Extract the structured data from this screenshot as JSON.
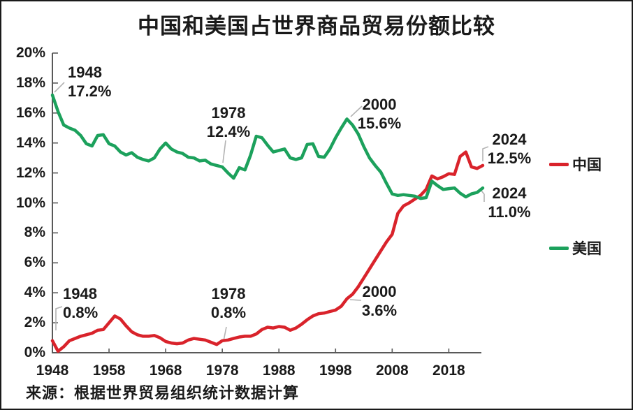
{
  "title": "中国和美国占世界商品贸易份额比较",
  "source": "来源：根据世界贸易组织统计数据计算",
  "legend": [
    {
      "label": "中国",
      "color": "#d9232b"
    },
    {
      "label": "美国",
      "color": "#1ca15c"
    }
  ],
  "chart_data": {
    "type": "line",
    "title": "中国和美国占世界商品贸易份额比较",
    "x_range": [
      1948,
      2024
    ],
    "x_step": 1,
    "ylim": [
      0,
      20
    ],
    "grid": false,
    "axis_color": "#595959",
    "leader_color": "#b3b3b3",
    "y_tick_labels": [
      "0%",
      "2%",
      "4%",
      "6%",
      "8%",
      "10%",
      "12%",
      "14%",
      "16%",
      "18%",
      "20%"
    ],
    "x_tick_labels": [
      "1948",
      "1958",
      "1968",
      "1978",
      "1988",
      "1998",
      "2008",
      "2018"
    ],
    "x_tick_label_years": [
      1948,
      1958,
      1968,
      1978,
      1988,
      1998,
      2008,
      2018
    ],
    "x_tick_marks": [
      1958,
      1968,
      1978,
      1988,
      1998,
      2008,
      2018
    ],
    "series": [
      {
        "name": "中国",
        "color": "#d9232b",
        "values": [
          0.8,
          0.1,
          0.4,
          0.8,
          0.95,
          1.1,
          1.2,
          1.3,
          1.5,
          1.55,
          2.0,
          2.45,
          2.25,
          1.8,
          1.4,
          1.2,
          1.1,
          1.1,
          1.15,
          1.0,
          0.75,
          0.65,
          0.6,
          0.65,
          0.85,
          0.95,
          0.9,
          0.85,
          0.7,
          0.55,
          0.8,
          0.85,
          0.95,
          1.05,
          1.1,
          1.1,
          1.25,
          1.55,
          1.7,
          1.65,
          1.75,
          1.7,
          1.5,
          1.65,
          1.9,
          2.2,
          2.45,
          2.6,
          2.65,
          2.75,
          2.85,
          3.1,
          3.6,
          3.9,
          4.4,
          5.0,
          5.6,
          6.2,
          6.8,
          7.4,
          7.9,
          9.3,
          9.8,
          10.0,
          10.25,
          10.5,
          10.9,
          11.8,
          11.6,
          11.75,
          11.95,
          11.9,
          13.1,
          13.4,
          12.4,
          12.3,
          12.5
        ]
      },
      {
        "name": "美国",
        "color": "#1ca15c",
        "values": [
          17.2,
          16.1,
          15.2,
          15.0,
          14.85,
          14.5,
          13.95,
          13.8,
          14.5,
          14.55,
          13.95,
          13.8,
          13.4,
          13.2,
          13.35,
          13.05,
          12.9,
          12.8,
          13.0,
          13.6,
          14.0,
          13.6,
          13.4,
          13.3,
          13.05,
          13.0,
          12.8,
          12.85,
          12.6,
          12.5,
          12.4,
          12.0,
          11.65,
          12.35,
          12.2,
          13.2,
          14.45,
          14.35,
          13.85,
          13.4,
          13.5,
          13.6,
          13.0,
          12.9,
          13.0,
          13.9,
          13.95,
          13.1,
          13.05,
          13.6,
          14.35,
          15.0,
          15.6,
          15.2,
          14.6,
          13.75,
          13.0,
          12.5,
          12.05,
          11.3,
          10.6,
          10.5,
          10.55,
          10.5,
          10.45,
          10.3,
          10.35,
          11.45,
          11.15,
          10.9,
          10.95,
          11.0,
          10.65,
          10.4,
          10.6,
          10.7,
          11.0
        ]
      }
    ],
    "annotations": [
      {
        "id": "us-1948",
        "series": "美国",
        "year": 1948,
        "value": 17.2,
        "line1": "1948",
        "line2": "17.2%"
      },
      {
        "id": "cn-1948",
        "series": "中国",
        "year": 1948,
        "value": 0.8,
        "line1": "1948",
        "line2": "0.8%"
      },
      {
        "id": "us-1978",
        "series": "美国",
        "year": 1978,
        "value": 12.4,
        "line1": "1978",
        "line2": "12.4%"
      },
      {
        "id": "cn-1978",
        "series": "中国",
        "year": 1978,
        "value": 0.8,
        "line1": "1978",
        "line2": "0.8%"
      },
      {
        "id": "us-2000",
        "series": "美国",
        "year": 2000,
        "value": 15.6,
        "line1": "2000",
        "line2": "15.6%"
      },
      {
        "id": "cn-2000",
        "series": "中国",
        "year": 2000,
        "value": 3.6,
        "line1": "2000",
        "line2": "3.6%"
      },
      {
        "id": "cn-2024",
        "series": "中国",
        "year": 2024,
        "value": 12.5,
        "line1": "2024",
        "line2": "12.5%"
      },
      {
        "id": "us-2024",
        "series": "美国",
        "year": 2024,
        "value": 11.0,
        "line1": "2024",
        "line2": "11.0%"
      }
    ]
  }
}
